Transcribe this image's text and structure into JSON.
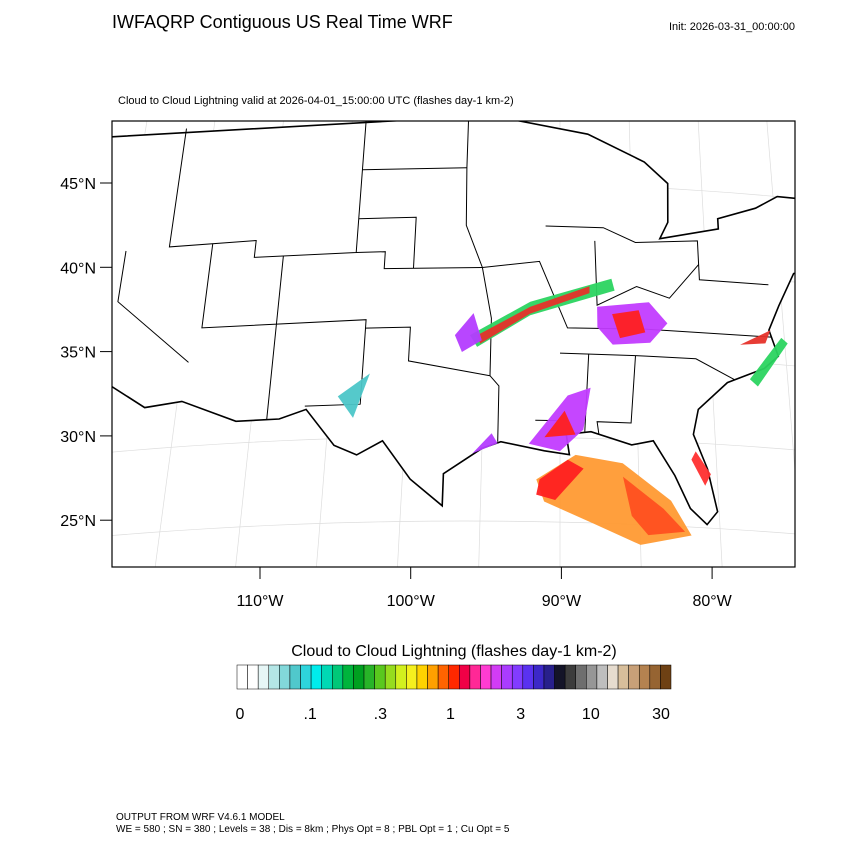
{
  "header": {
    "title": "IWFAQRP Contiguous US Real Time WRF",
    "init": "Init: 2026-03-31_00:00:00"
  },
  "map": {
    "subtitle": "Cloud to Cloud Lightning valid at 2026-04-01_15:00:00 UTC   (flashes day-1 km-2)",
    "lat_labels": [
      "45°N",
      "40°N",
      "35°N",
      "30°N",
      "25°N"
    ],
    "lon_labels": [
      "110°W",
      "100°W",
      "90°W",
      "80°W"
    ]
  },
  "colorbar": {
    "title": "Cloud to Cloud Lightning  (flashes day-1 km-2)",
    "colors": [
      "#ffffff",
      "#ffffff",
      "#e6f6f6",
      "#b4e6e6",
      "#82d8da",
      "#50c8cc",
      "#2ed4dc",
      "#00ecec",
      "#00d8b4",
      "#00c878",
      "#00b43c",
      "#00a020",
      "#28b428",
      "#5ac81e",
      "#96dc1e",
      "#d2f01e",
      "#f5f01e",
      "#ffd200",
      "#ffa000",
      "#ff6400",
      "#ff2800",
      "#f00046",
      "#ff2896",
      "#ff3cd2",
      "#d23cf5",
      "#aa3cff",
      "#823cff",
      "#5a32f0",
      "#3c28c8",
      "#28208c",
      "#141428",
      "#3c3c3c",
      "#6e6e6e",
      "#969696",
      "#bebebe",
      "#e6dccf",
      "#d7be9b",
      "#c8a078",
      "#b48250",
      "#966432",
      "#6e4114"
    ],
    "tick_labels": [
      "0",
      ".1",
      ".3",
      "1",
      "3",
      "10",
      "30"
    ]
  },
  "footer": {
    "lines": [
      "OUTPUT FROM WRF V4.6.1 MODEL",
      "WE = 580 ; SN = 380 ; Levels = 38 ; Dis = 8km ; Phys Opt = 8 ; PBL Opt = 1 ; Cu Opt = 5"
    ]
  }
}
